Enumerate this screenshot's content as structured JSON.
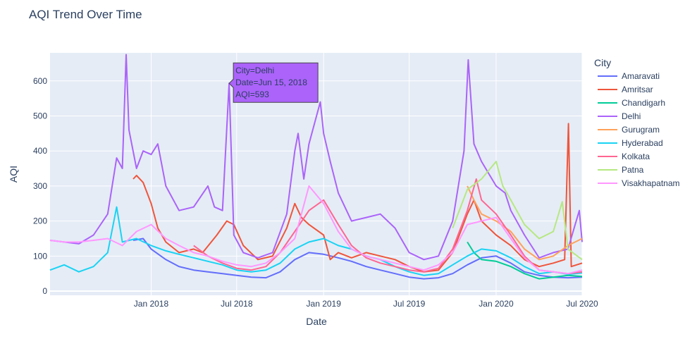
{
  "chart_data": {
    "type": "line",
    "title": "AQI Trend Over Time",
    "xlabel": "Date",
    "ylabel": "AQI",
    "xlim": [
      "2017-06-01",
      "2020-07-01"
    ],
    "ylim": [
      -12,
      680
    ],
    "x_ticks": [
      {
        "date": "2018-01-01",
        "label": "Jan 2018"
      },
      {
        "date": "2018-07-01",
        "label": "Jul 2018"
      },
      {
        "date": "2019-01-01",
        "label": "Jan 2019"
      },
      {
        "date": "2019-07-01",
        "label": "Jul 2019"
      },
      {
        "date": "2020-01-01",
        "label": "Jan 2020"
      },
      {
        "date": "2020-07-01",
        "label": "Jul 2020"
      }
    ],
    "y_ticks": [
      0,
      100,
      200,
      300,
      400,
      500,
      600
    ],
    "legend": {
      "title": "City",
      "placement": "right"
    },
    "grid": true,
    "background": "#e5ecf6",
    "series": [
      {
        "name": "Amaravati",
        "color": "#636efa",
        "points": [
          [
            "2017-11-24",
            145
          ],
          [
            "2017-12-15",
            150
          ],
          [
            "2018-01-01",
            120
          ],
          [
            "2018-02-01",
            90
          ],
          [
            "2018-03-01",
            70
          ],
          [
            "2018-04-01",
            60
          ],
          [
            "2018-05-01",
            55
          ],
          [
            "2018-06-01",
            50
          ],
          [
            "2018-07-01",
            45
          ],
          [
            "2018-08-01",
            40
          ],
          [
            "2018-09-01",
            38
          ],
          [
            "2018-10-01",
            55
          ],
          [
            "2018-11-01",
            90
          ],
          [
            "2018-12-01",
            110
          ],
          [
            "2019-01-01",
            105
          ],
          [
            "2019-02-01",
            95
          ],
          [
            "2019-03-01",
            85
          ],
          [
            "2019-04-01",
            70
          ],
          [
            "2019-05-01",
            60
          ],
          [
            "2019-06-01",
            50
          ],
          [
            "2019-07-01",
            40
          ],
          [
            "2019-08-01",
            35
          ],
          [
            "2019-09-01",
            38
          ],
          [
            "2019-10-01",
            50
          ],
          [
            "2019-11-01",
            75
          ],
          [
            "2019-12-01",
            95
          ],
          [
            "2020-01-01",
            100
          ],
          [
            "2020-02-01",
            80
          ],
          [
            "2020-03-01",
            55
          ],
          [
            "2020-04-01",
            45
          ],
          [
            "2020-05-01",
            40
          ],
          [
            "2020-06-01",
            38
          ],
          [
            "2020-07-01",
            40
          ]
        ]
      },
      {
        "name": "Amritsar",
        "color": "#ef553b",
        "points": [
          [
            "2017-11-24",
            320
          ],
          [
            "2017-12-01",
            330
          ],
          [
            "2017-12-15",
            310
          ],
          [
            "2018-01-01",
            250
          ],
          [
            "2018-01-15",
            180
          ],
          [
            "2018-02-01",
            140
          ],
          [
            "2018-03-01",
            110
          ],
          [
            "2018-04-01",
            120
          ],
          [
            "2018-04-20",
            110
          ],
          [
            "2018-05-20",
            160
          ],
          [
            "2018-06-10",
            200
          ],
          [
            "2018-06-25",
            190
          ],
          [
            "2018-07-15",
            130
          ],
          [
            "2018-08-15",
            90
          ],
          [
            "2018-09-15",
            100
          ],
          [
            "2018-10-15",
            180
          ],
          [
            "2018-11-01",
            250
          ],
          [
            "2018-11-15",
            210
          ],
          [
            "2018-12-01",
            190
          ],
          [
            "2019-01-01",
            160
          ],
          [
            "2019-01-15",
            90
          ],
          [
            "2019-02-01",
            110
          ],
          [
            "2019-03-01",
            95
          ],
          [
            "2019-04-01",
            110
          ],
          [
            "2019-05-01",
            100
          ],
          [
            "2019-06-01",
            90
          ],
          [
            "2019-07-01",
            70
          ],
          [
            "2019-08-01",
            55
          ],
          [
            "2019-09-01",
            60
          ],
          [
            "2019-10-01",
            110
          ],
          [
            "2019-11-01",
            220
          ],
          [
            "2019-11-15",
            260
          ],
          [
            "2019-12-01",
            200
          ],
          [
            "2020-01-01",
            160
          ],
          [
            "2020-02-01",
            130
          ],
          [
            "2020-03-01",
            90
          ],
          [
            "2020-04-01",
            70
          ],
          [
            "2020-05-01",
            80
          ],
          [
            "2020-05-25",
            90
          ],
          [
            "2020-06-02",
            478
          ],
          [
            "2020-06-08",
            70
          ],
          [
            "2020-07-01",
            80
          ]
        ]
      },
      {
        "name": "Chandigarh",
        "color": "#00cc96",
        "points": [
          [
            "2019-11-01",
            140
          ],
          [
            "2019-11-15",
            110
          ],
          [
            "2019-12-01",
            90
          ],
          [
            "2020-01-01",
            85
          ],
          [
            "2020-02-01",
            70
          ],
          [
            "2020-03-01",
            50
          ],
          [
            "2020-04-01",
            35
          ],
          [
            "2020-05-01",
            40
          ],
          [
            "2020-06-01",
            45
          ],
          [
            "2020-07-01",
            42
          ]
        ]
      },
      {
        "name": "Delhi",
        "color": "#ab63fa",
        "points": [
          [
            "2017-06-01",
            145
          ],
          [
            "2017-07-01",
            140
          ],
          [
            "2017-08-01",
            135
          ],
          [
            "2017-09-01",
            160
          ],
          [
            "2017-10-01",
            220
          ],
          [
            "2017-10-20",
            380
          ],
          [
            "2017-11-01",
            350
          ],
          [
            "2017-11-09",
            675
          ],
          [
            "2017-11-15",
            460
          ],
          [
            "2017-12-01",
            350
          ],
          [
            "2017-12-15",
            400
          ],
          [
            "2018-01-01",
            390
          ],
          [
            "2018-01-15",
            420
          ],
          [
            "2018-02-01",
            300
          ],
          [
            "2018-03-01",
            230
          ],
          [
            "2018-04-01",
            240
          ],
          [
            "2018-05-01",
            300
          ],
          [
            "2018-05-15",
            240
          ],
          [
            "2018-06-01",
            230
          ],
          [
            "2018-06-15",
            593
          ],
          [
            "2018-06-25",
            160
          ],
          [
            "2018-07-15",
            110
          ],
          [
            "2018-08-15",
            95
          ],
          [
            "2018-09-15",
            110
          ],
          [
            "2018-10-15",
            220
          ],
          [
            "2018-11-01",
            400
          ],
          [
            "2018-11-08",
            450
          ],
          [
            "2018-11-20",
            320
          ],
          [
            "2018-12-01",
            420
          ],
          [
            "2018-12-25",
            540
          ],
          [
            "2019-01-01",
            450
          ],
          [
            "2019-01-15",
            370
          ],
          [
            "2019-02-01",
            280
          ],
          [
            "2019-03-01",
            200
          ],
          [
            "2019-04-01",
            210
          ],
          [
            "2019-05-01",
            220
          ],
          [
            "2019-06-01",
            180
          ],
          [
            "2019-07-01",
            110
          ],
          [
            "2019-08-01",
            90
          ],
          [
            "2019-09-01",
            100
          ],
          [
            "2019-10-01",
            200
          ],
          [
            "2019-10-25",
            400
          ],
          [
            "2019-11-03",
            660
          ],
          [
            "2019-11-15",
            420
          ],
          [
            "2019-12-01",
            370
          ],
          [
            "2020-01-01",
            300
          ],
          [
            "2020-01-20",
            280
          ],
          [
            "2020-02-01",
            230
          ],
          [
            "2020-03-01",
            160
          ],
          [
            "2020-04-01",
            95
          ],
          [
            "2020-05-01",
            110
          ],
          [
            "2020-06-01",
            120
          ],
          [
            "2020-06-25",
            230
          ],
          [
            "2020-07-01",
            140
          ]
        ]
      },
      {
        "name": "Gurugram",
        "color": "#ffa15a",
        "points": [
          [
            "2019-11-01",
            300
          ],
          [
            "2019-11-15",
            260
          ],
          [
            "2019-12-01",
            220
          ],
          [
            "2020-01-01",
            200
          ],
          [
            "2020-02-01",
            170
          ],
          [
            "2020-03-01",
            120
          ],
          [
            "2020-04-01",
            90
          ],
          [
            "2020-05-01",
            100
          ],
          [
            "2020-06-01",
            130
          ],
          [
            "2020-07-01",
            150
          ]
        ]
      },
      {
        "name": "Hyderabad",
        "color": "#19d3f3",
        "points": [
          [
            "2017-06-01",
            60
          ],
          [
            "2017-07-01",
            75
          ],
          [
            "2017-08-01",
            55
          ],
          [
            "2017-09-01",
            70
          ],
          [
            "2017-10-01",
            110
          ],
          [
            "2017-10-20",
            240
          ],
          [
            "2017-11-01",
            140
          ],
          [
            "2017-12-01",
            150
          ],
          [
            "2018-01-01",
            130
          ],
          [
            "2018-02-01",
            115
          ],
          [
            "2018-03-01",
            105
          ],
          [
            "2018-04-01",
            95
          ],
          [
            "2018-05-01",
            85
          ],
          [
            "2018-06-01",
            75
          ],
          [
            "2018-07-01",
            60
          ],
          [
            "2018-08-01",
            55
          ],
          [
            "2018-09-01",
            60
          ],
          [
            "2018-10-01",
            80
          ],
          [
            "2018-11-01",
            120
          ],
          [
            "2018-12-01",
            140
          ],
          [
            "2019-01-01",
            150
          ],
          [
            "2019-02-01",
            130
          ],
          [
            "2019-03-01",
            120
          ],
          [
            "2019-04-01",
            100
          ],
          [
            "2019-05-01",
            90
          ],
          [
            "2019-06-01",
            70
          ],
          [
            "2019-07-01",
            55
          ],
          [
            "2019-08-01",
            45
          ],
          [
            "2019-09-01",
            50
          ],
          [
            "2019-10-01",
            75
          ],
          [
            "2019-11-01",
            100
          ],
          [
            "2019-12-01",
            120
          ],
          [
            "2020-01-01",
            115
          ],
          [
            "2020-02-01",
            95
          ],
          [
            "2020-03-01",
            70
          ],
          [
            "2020-04-01",
            50
          ],
          [
            "2020-05-01",
            55
          ],
          [
            "2020-06-01",
            48
          ],
          [
            "2020-07-01",
            52
          ]
        ]
      },
      {
        "name": "Kolkata",
        "color": "#ff6692",
        "points": [
          [
            "2018-04-01",
            130
          ],
          [
            "2018-05-01",
            100
          ],
          [
            "2018-06-01",
            80
          ],
          [
            "2018-07-01",
            65
          ],
          [
            "2018-08-01",
            60
          ],
          [
            "2018-09-01",
            70
          ],
          [
            "2018-10-01",
            110
          ],
          [
            "2018-11-01",
            170
          ],
          [
            "2018-12-01",
            230
          ],
          [
            "2019-01-01",
            260
          ],
          [
            "2019-02-01",
            190
          ],
          [
            "2019-03-01",
            130
          ],
          [
            "2019-04-01",
            95
          ],
          [
            "2019-05-01",
            80
          ],
          [
            "2019-06-01",
            70
          ],
          [
            "2019-07-01",
            60
          ],
          [
            "2019-08-01",
            55
          ],
          [
            "2019-09-01",
            65
          ],
          [
            "2019-10-01",
            120
          ],
          [
            "2019-11-01",
            230
          ],
          [
            "2019-11-20",
            320
          ],
          [
            "2019-12-01",
            260
          ],
          [
            "2020-01-01",
            220
          ],
          [
            "2020-02-01",
            160
          ],
          [
            "2020-03-01",
            100
          ],
          [
            "2020-04-01",
            60
          ],
          [
            "2020-05-01",
            55
          ],
          [
            "2020-06-01",
            50
          ],
          [
            "2020-07-01",
            55
          ]
        ]
      },
      {
        "name": "Patna",
        "color": "#b6e880",
        "points": [
          [
            "2019-10-01",
            180
          ],
          [
            "2019-11-01",
            290
          ],
          [
            "2019-12-01",
            320
          ],
          [
            "2020-01-01",
            370
          ],
          [
            "2020-01-15",
            300
          ],
          [
            "2020-02-01",
            260
          ],
          [
            "2020-03-01",
            190
          ],
          [
            "2020-04-01",
            150
          ],
          [
            "2020-05-01",
            170
          ],
          [
            "2020-05-20",
            255
          ],
          [
            "2020-06-01",
            120
          ],
          [
            "2020-07-01",
            90
          ]
        ]
      },
      {
        "name": "Visakhapatnam",
        "color": "#ff97ff",
        "points": [
          [
            "2017-06-01",
            145
          ],
          [
            "2017-07-01",
            140
          ],
          [
            "2017-08-01",
            140
          ],
          [
            "2017-09-01",
            145
          ],
          [
            "2017-10-01",
            150
          ],
          [
            "2017-11-01",
            130
          ],
          [
            "2017-12-01",
            170
          ],
          [
            "2018-01-01",
            190
          ],
          [
            "2018-02-01",
            150
          ],
          [
            "2018-03-01",
            130
          ],
          [
            "2018-04-01",
            110
          ],
          [
            "2018-05-01",
            100
          ],
          [
            "2018-06-01",
            85
          ],
          [
            "2018-07-01",
            75
          ],
          [
            "2018-08-01",
            70
          ],
          [
            "2018-09-01",
            80
          ],
          [
            "2018-10-01",
            110
          ],
          [
            "2018-11-01",
            150
          ],
          [
            "2018-12-01",
            300
          ],
          [
            "2019-01-01",
            250
          ],
          [
            "2019-02-01",
            170
          ],
          [
            "2019-03-01",
            120
          ],
          [
            "2019-04-01",
            100
          ],
          [
            "2019-05-01",
            90
          ],
          [
            "2019-06-01",
            80
          ],
          [
            "2019-07-01",
            70
          ],
          [
            "2019-08-01",
            60
          ],
          [
            "2019-09-01",
            75
          ],
          [
            "2019-10-01",
            110
          ],
          [
            "2019-11-01",
            190
          ],
          [
            "2019-12-01",
            200
          ],
          [
            "2020-01-01",
            210
          ],
          [
            "2020-02-01",
            150
          ],
          [
            "2020-03-01",
            95
          ],
          [
            "2020-04-01",
            60
          ],
          [
            "2020-05-01",
            55
          ],
          [
            "2020-06-01",
            50
          ],
          [
            "2020-07-01",
            60
          ]
        ]
      }
    ],
    "hover": {
      "series": "Delhi",
      "date": "2018-06-15",
      "value": 593,
      "lines": [
        "City=Delhi",
        "Date=Jun 15, 2018",
        "AQI=593"
      ]
    }
  }
}
